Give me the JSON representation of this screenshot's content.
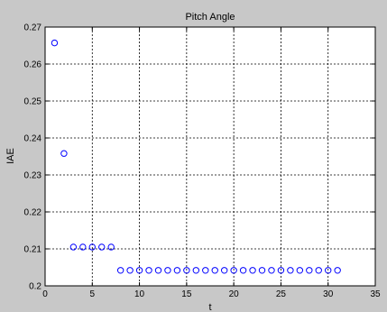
{
  "chart_data": {
    "type": "scatter",
    "title": "Pitch Angle",
    "xlabel": "t",
    "ylabel": "IAE",
    "xlim": [
      0,
      35
    ],
    "ylim": [
      0.2,
      0.27
    ],
    "xticks": [
      0,
      5,
      10,
      15,
      20,
      25,
      30,
      35
    ],
    "yticks": [
      0.2,
      0.21,
      0.22,
      0.23,
      0.24,
      0.25,
      0.26,
      0.27
    ],
    "xtick_labels": [
      "0",
      "5",
      "10",
      "15",
      "20",
      "25",
      "30",
      "35"
    ],
    "ytick_labels": [
      "0.2",
      "0.21",
      "0.22",
      "0.23",
      "0.24",
      "0.25",
      "0.26",
      "0.27"
    ],
    "grid": true,
    "marker": "circle-open",
    "series": [
      {
        "color": "#0000ff",
        "x": [
          1,
          2,
          3,
          4,
          5,
          6,
          7,
          8,
          9,
          10,
          11,
          12,
          13,
          14,
          15,
          16,
          17,
          18,
          19,
          20,
          21,
          22,
          23,
          24,
          25,
          26,
          27,
          28,
          29,
          30,
          31
        ],
        "y": [
          0.2657,
          0.2358,
          0.2105,
          0.2105,
          0.2105,
          0.2105,
          0.2105,
          0.2042,
          0.2042,
          0.2042,
          0.2042,
          0.2042,
          0.2042,
          0.2042,
          0.2042,
          0.2042,
          0.2042,
          0.2042,
          0.2042,
          0.2042,
          0.2042,
          0.2042,
          0.2042,
          0.2042,
          0.2042,
          0.2042,
          0.2042,
          0.2042,
          0.2042,
          0.2042,
          0.2042
        ]
      }
    ]
  }
}
